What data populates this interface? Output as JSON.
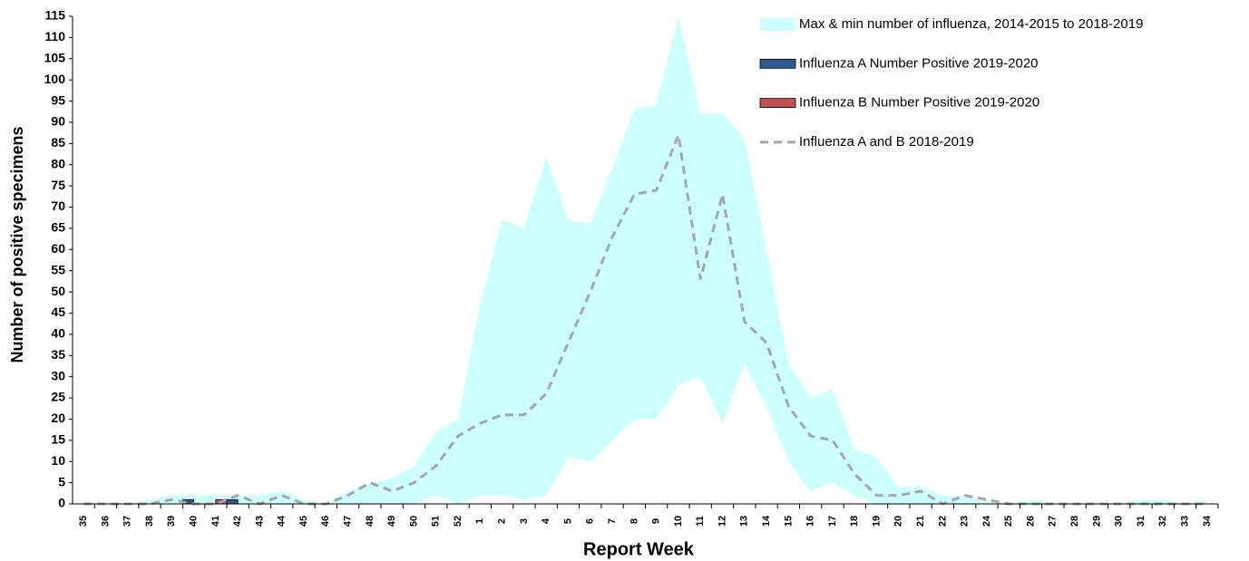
{
  "chart_data": {
    "type": "combo",
    "x_label": "Report Week",
    "y_label": "Number of positive specimens",
    "categories": [
      "35",
      "36",
      "37",
      "38",
      "39",
      "40",
      "41",
      "42",
      "43",
      "44",
      "45",
      "46",
      "47",
      "48",
      "49",
      "50",
      "51",
      "52",
      "1",
      "2",
      "3",
      "4",
      "5",
      "6",
      "7",
      "8",
      "9",
      "10",
      "11",
      "12",
      "13",
      "14",
      "15",
      "16",
      "17",
      "18",
      "19",
      "20",
      "21",
      "22",
      "23",
      "24",
      "25",
      "26",
      "27",
      "28",
      "29",
      "30",
      "31",
      "32",
      "33",
      "34"
    ],
    "ylim": [
      0,
      115
    ],
    "yticks": [
      0,
      5,
      10,
      15,
      20,
      25,
      30,
      35,
      40,
      45,
      50,
      55,
      60,
      65,
      70,
      75,
      80,
      85,
      90,
      95,
      100,
      105,
      110,
      115
    ],
    "grid": false,
    "legend": "top-right",
    "series": [
      {
        "name": "Max & min number of influenza, 2014-2015 to 2018-2019",
        "type": "range",
        "color": "#ccffff",
        "values": [
          0,
          0,
          0,
          1,
          2,
          2,
          2,
          2,
          2,
          3,
          1,
          0,
          3,
          5,
          6,
          9,
          17,
          20,
          47,
          67,
          65,
          82,
          67,
          66,
          79,
          93,
          94,
          115,
          92,
          92,
          86,
          60,
          33,
          25,
          27,
          13,
          11,
          4,
          4,
          2,
          2,
          1,
          0,
          1,
          0,
          0,
          0,
          0,
          1,
          1,
          0,
          1
        ],
        "min_values": [
          0,
          0,
          0,
          0,
          0,
          0,
          0,
          0,
          0,
          0,
          0,
          0,
          0,
          0,
          0,
          0,
          2,
          0,
          2,
          2,
          1,
          2,
          11,
          10,
          15,
          20,
          20,
          28,
          30,
          19,
          33,
          23,
          10,
          3,
          5,
          2,
          0,
          0,
          0,
          0,
          0,
          0,
          0,
          0,
          0,
          0,
          0,
          0,
          0,
          0,
          0,
          0
        ]
      },
      {
        "name": "Influenza A Number Positive 2019-2020",
        "type": "bar",
        "color": "#2e5a8e",
        "values": [
          0,
          0,
          0,
          0,
          0,
          1,
          0,
          1,
          null,
          null,
          null,
          null,
          null,
          null,
          null,
          null,
          null,
          null,
          null,
          null,
          null,
          null,
          null,
          null,
          null,
          null,
          null,
          null,
          null,
          null,
          null,
          null,
          null,
          null,
          null,
          null,
          null,
          null,
          null,
          null,
          null,
          null,
          null,
          null,
          null,
          null,
          null,
          null,
          null,
          null,
          null,
          null
        ]
      },
      {
        "name": "Influenza B Number Positive 2019-2020",
        "type": "bar",
        "color": "#c0504d",
        "values": [
          0,
          0,
          0,
          0,
          0,
          0,
          1,
          0,
          null,
          null,
          null,
          null,
          null,
          null,
          null,
          null,
          null,
          null,
          null,
          null,
          null,
          null,
          null,
          null,
          null,
          null,
          null,
          null,
          null,
          null,
          null,
          null,
          null,
          null,
          null,
          null,
          null,
          null,
          null,
          null,
          null,
          null,
          null,
          null,
          null,
          null,
          null,
          null,
          null,
          null,
          null,
          null
        ]
      },
      {
        "name": "Influenza A and B 2018-2019",
        "type": "line",
        "color": "#a6a6a6",
        "values": [
          0,
          0,
          0,
          0,
          1,
          0,
          0,
          2,
          0,
          2,
          0,
          0,
          2,
          5,
          3,
          5,
          9,
          16,
          19,
          21,
          21,
          26,
          38,
          50,
          63,
          73,
          74,
          87,
          53,
          73,
          43,
          38,
          23,
          16,
          15,
          7,
          2,
          2,
          3,
          0,
          2,
          1,
          0,
          0,
          0,
          0,
          0,
          0,
          0,
          0,
          0,
          0
        ]
      }
    ]
  }
}
